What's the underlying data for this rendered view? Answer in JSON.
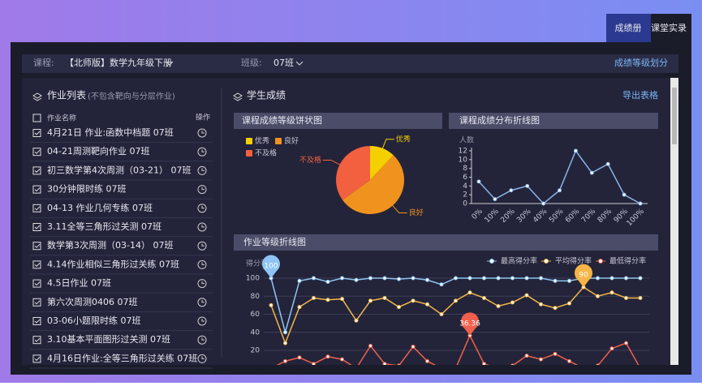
{
  "tabs": [
    "成绩册",
    "课堂实录"
  ],
  "filter": {
    "course_label": "课程:",
    "course": "【北师版】数学九年级下册",
    "class_label": "班级:",
    "class": "07班",
    "grade_link": "成绩等级划分"
  },
  "homework": {
    "title": "作业列表",
    "note": "(不包含靶向与分层作业)",
    "col_name": "作业名称",
    "col_action": "操作",
    "items": [
      "4月21日 作业:函数中档题 07班",
      "04-21周测靶向作业 07班",
      "初三数学第4次周测（03-21） 07班",
      "30分钟限时练 07班",
      "04-13 作业几何专练 07班",
      "3.11全等三角形过关测 07班",
      "数学第3次周测（03-14） 07班",
      "4.14作业相似三角形过关练 07班",
      "4.5日作业 07班",
      "第六次周测0406 07班",
      "03-06小题限时练 07班",
      "3.10基本平面图形过关测 07班",
      "4月16日作业:全等三角形过关练 07班"
    ]
  },
  "scores": {
    "title": "学生成绩",
    "export": "导出表格"
  },
  "chart_data": [
    {
      "type": "pie",
      "title": "课程成绩等级饼状图",
      "categories": [
        "优秀",
        "良好",
        "不及格"
      ],
      "values": [
        12,
        53,
        35
      ],
      "colors": [
        "#f5d000",
        "#f0921e",
        "#f2603f"
      ]
    },
    {
      "type": "line",
      "title": "课程成绩分布折线图",
      "ylabel": "人数",
      "categories": [
        "0%",
        "10%",
        "20%",
        "30%",
        "40%",
        "50%",
        "60%",
        "70%",
        "80%",
        "90%",
        "100%"
      ],
      "values": [
        5,
        1,
        3,
        4,
        0,
        3,
        12,
        7,
        9,
        2,
        0
      ],
      "color": "#8ab4e8",
      "ylim": [
        0,
        12
      ],
      "yticks": [
        0,
        2,
        4,
        6,
        8,
        10,
        12
      ]
    },
    {
      "type": "line",
      "title": "作业等级折线图",
      "ylabel": "得分率",
      "categories": [
        null,
        null,
        null,
        null,
        null,
        null,
        null,
        null,
        null,
        null,
        null,
        null,
        null,
        null,
        null,
        null,
        null,
        null,
        null,
        null,
        null,
        null,
        null,
        null,
        null,
        null,
        null
      ],
      "ylim": [
        0,
        120
      ],
      "yticks": [
        20,
        40,
        60,
        80,
        100
      ],
      "series": [
        {
          "name": "最高得分率",
          "color": "#8ec5f5",
          "peak": 100,
          "values": [
            100,
            40,
            97,
            100,
            96,
            100,
            98,
            100,
            100,
            99,
            100,
            98,
            93,
            100,
            100,
            100,
            100,
            100,
            100,
            100,
            97,
            97,
            100,
            100,
            100,
            100,
            100
          ]
        },
        {
          "name": "平均得分率",
          "color": "#f5b547",
          "peak": 90,
          "values": [
            70,
            28,
            68,
            78,
            76,
            77,
            53,
            75,
            78,
            68,
            75,
            71,
            60,
            75,
            84,
            78,
            69,
            73,
            81,
            71,
            67,
            72,
            90,
            80,
            84,
            78,
            78
          ]
        },
        {
          "name": "最低得分率",
          "color": "#f0604a",
          "peak": 36.36,
          "values": [
            0,
            8,
            12,
            5,
            13,
            10,
            0,
            25,
            5,
            3,
            24,
            8,
            0,
            0,
            36.36,
            5,
            0,
            3,
            14,
            10,
            16,
            8,
            0,
            3,
            22,
            28,
            0
          ]
        }
      ]
    }
  ]
}
